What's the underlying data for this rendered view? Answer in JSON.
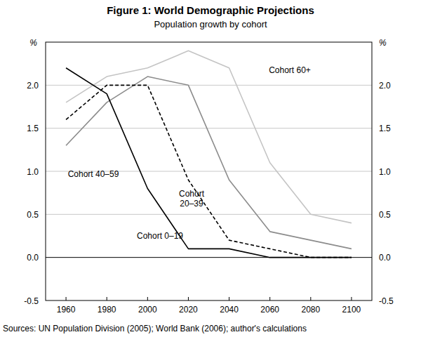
{
  "chart_data": {
    "type": "line",
    "title": "Figure 1: World Demographic Projections",
    "subtitle": "Population growth by cohort",
    "ylabel": "%",
    "source": "Sources: UN Population Division (2005); World Bank (2006); author's calculations",
    "x": [
      1960,
      1980,
      2000,
      2020,
      2040,
      2060,
      2080,
      2100
    ],
    "xlim": [
      1950,
      2110
    ],
    "xticks": [
      1960,
      1980,
      2000,
      2020,
      2040,
      2060,
      2080,
      2100
    ],
    "ylim": [
      -0.5,
      2.5
    ],
    "yticks": [
      {
        "value": -0.5,
        "label": "-0.5"
      },
      {
        "value": 0,
        "label": "0.0"
      },
      {
        "value": 0.5,
        "label": "0.5"
      },
      {
        "value": 1,
        "label": "1.0"
      },
      {
        "value": 1.5,
        "label": "1.5"
      },
      {
        "value": 2,
        "label": "2.0"
      }
    ],
    "grid": true,
    "series": [
      {
        "name": "Cohort 0–19",
        "color": "#000000",
        "line_style": "solid",
        "values": [
          2.2,
          1.9,
          0.8,
          0.1,
          0.1,
          0.0,
          0.0,
          0.0
        ]
      },
      {
        "name": "Cohort 20–39",
        "color": "#000000",
        "line_style": "dashed",
        "values": [
          1.6,
          2.0,
          2.0,
          0.9,
          0.2,
          0.1,
          0.0,
          0.0
        ]
      },
      {
        "name": "Cohort 40–59",
        "color": "#8c8c8c",
        "line_style": "solid",
        "values": [
          1.3,
          1.8,
          2.1,
          2.0,
          0.9,
          0.3,
          0.2,
          0.1
        ]
      },
      {
        "name": "Cohort 60+",
        "color": "#c4c4c4",
        "line_style": "solid",
        "values": [
          1.8,
          2.1,
          2.2,
          2.4,
          2.2,
          1.1,
          0.5,
          0.4
        ]
      }
    ]
  }
}
